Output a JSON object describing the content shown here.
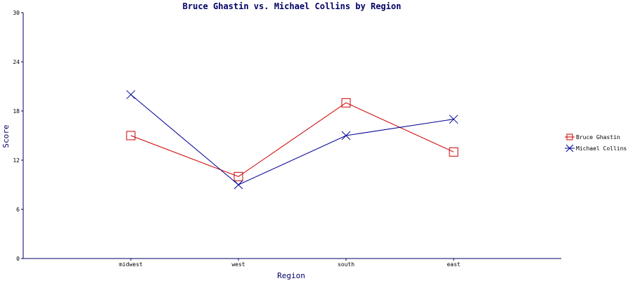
{
  "chart_data": {
    "type": "line",
    "title": "Bruce Ghastin vs. Michael Collins by Region",
    "xlabel": "Region",
    "ylabel": "Score",
    "categories": [
      "midwest",
      "west",
      "south",
      "east"
    ],
    "ylim": [
      0,
      30
    ],
    "yticks": [
      0,
      6,
      12,
      18,
      24,
      30
    ],
    "grid": false,
    "legend_position": "right",
    "series": [
      {
        "name": "Bruce Ghastin",
        "values": [
          15,
          10,
          19,
          13
        ],
        "color": "#cc0000",
        "marker": "square"
      },
      {
        "name": "Michael Collins",
        "values": [
          20,
          9,
          15,
          17
        ],
        "color": "#000099",
        "marker": "x"
      }
    ],
    "axis_color": "#000066"
  }
}
